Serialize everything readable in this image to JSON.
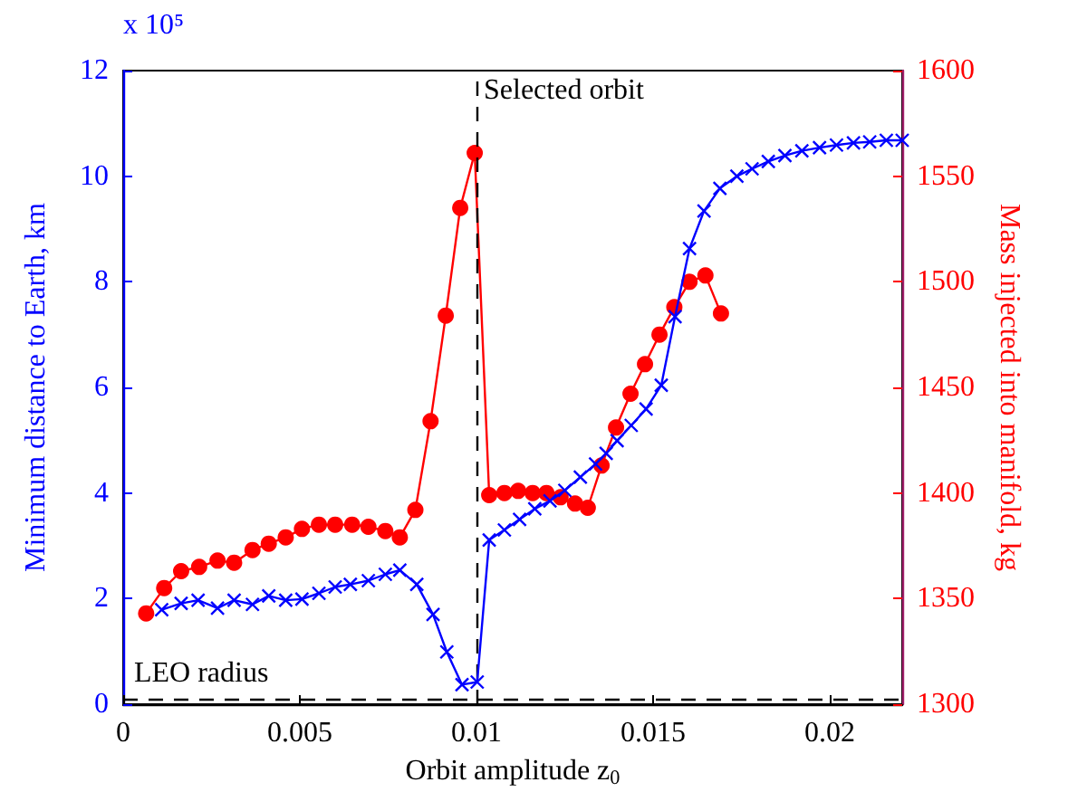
{
  "chart_data": {
    "type": "line",
    "xlabel": "Orbit amplitude z$_{0}$",
    "ylabel": "Minimum distance to Earth, km",
    "y2label": "Mass injected into manifold, kg",
    "xlim": [
      0,
      0.02205
    ],
    "xticks": [
      0,
      0.005,
      0.01,
      0.015,
      0.02
    ],
    "ylim": [
      0,
      12
    ],
    "yticks": [
      0,
      2,
      4,
      6,
      8,
      10,
      12
    ],
    "y2lim": [
      1300,
      1600
    ],
    "y2ticks": [
      1300,
      1350,
      1400,
      1450,
      1500,
      1550,
      1600
    ],
    "annotations": [
      "x 10⁵"
    ],
    "grid": false,
    "ref_lines": [
      {
        "axis": "x",
        "value": 0.01,
        "label": "Selected orbit",
        "color": "#000000",
        "line_style": "dashed"
      },
      {
        "axis": "y",
        "value": 0.1,
        "label": "LEO radius",
        "color": "#000000",
        "line_style": "dashed"
      }
    ],
    "series": [
      {
        "color": "#0000ff",
        "marker": "cross",
        "line_style": "solid",
        "x": [
          0.00109,
          0.00164,
          0.00212,
          0.00267,
          0.00314,
          0.00366,
          0.00412,
          0.0046,
          0.00506,
          0.00554,
          0.006,
          0.00643,
          0.00694,
          0.00742,
          0.00783,
          0.00831,
          0.00877,
          0.00916,
          0.00959,
          0.01002,
          0.01036,
          0.01079,
          0.01122,
          0.01165,
          0.01208,
          0.0125,
          0.01294,
          0.01337,
          0.01367,
          0.01398,
          0.01438,
          0.0148,
          0.01523,
          0.01562,
          0.01603,
          0.01644,
          0.01689,
          0.01737,
          0.0178,
          0.01826,
          0.01873,
          0.01921,
          0.01971,
          0.02019,
          0.02067,
          0.02113,
          0.0216,
          0.02205
        ],
        "values": [
          1.79,
          1.91,
          1.97,
          1.82,
          1.97,
          1.89,
          2.05,
          1.97,
          1.99,
          2.1,
          2.22,
          2.27,
          2.34,
          2.46,
          2.54,
          2.27,
          1.7,
          0.99,
          0.37,
          0.42,
          3.11,
          3.3,
          3.5,
          3.7,
          3.85,
          4.05,
          4.3,
          4.55,
          4.75,
          4.99,
          5.28,
          5.59,
          6.04,
          7.34,
          8.63,
          9.34,
          9.77,
          10.0,
          10.14,
          10.28,
          10.39,
          10.48,
          10.54,
          10.59,
          10.63,
          10.65,
          10.68,
          10.68
        ]
      },
      {
        "color": "#ff0000",
        "marker": "circle",
        "line_style": "solid",
        "axis": "y2",
        "x": [
          0.00065,
          0.00116,
          0.00164,
          0.00215,
          0.00267,
          0.00314,
          0.00366,
          0.00412,
          0.0046,
          0.00506,
          0.00554,
          0.006,
          0.00648,
          0.00694,
          0.00742,
          0.00783,
          0.00827,
          0.0087,
          0.00913,
          0.00954,
          0.00995,
          0.01036,
          0.01079,
          0.01118,
          0.01159,
          0.01198,
          0.01238,
          0.01279,
          0.01315,
          0.01354,
          0.01395,
          0.01436,
          0.01477,
          0.01518,
          0.0156,
          0.01603,
          0.01648,
          0.01692
        ],
        "values": [
          1343,
          1355,
          1363,
          1365,
          1368,
          1367,
          1373,
          1376,
          1379,
          1383,
          1385,
          1385,
          1385,
          1384,
          1382,
          1379,
          1392,
          1434,
          1484,
          1535,
          1561,
          1399,
          1400,
          1401,
          1400,
          1400,
          1398,
          1395,
          1393,
          1413,
          1431,
          1447,
          1461,
          1475,
          1488,
          1500,
          1503,
          1485
        ]
      }
    ]
  }
}
